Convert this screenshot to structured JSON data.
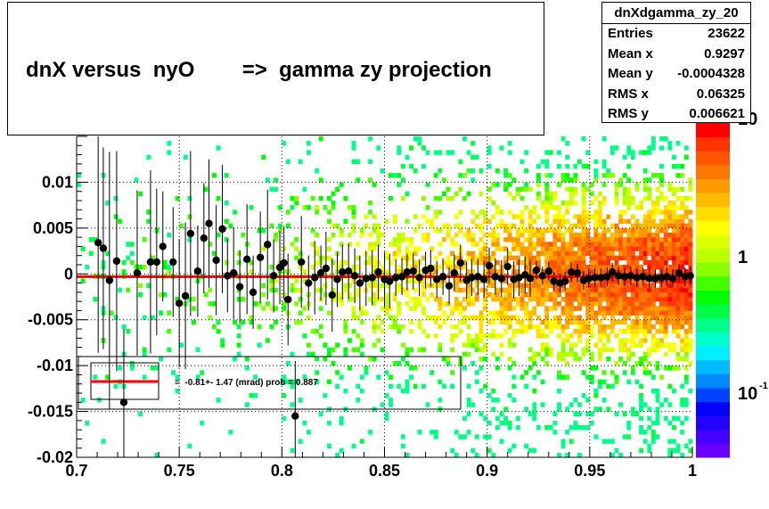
{
  "title": "dnX versus  nyO        =>  gamma zy projection",
  "stats": {
    "name": "dnXdgamma_zy_20",
    "rows": [
      {
        "label": "Entries",
        "value": "23622"
      },
      {
        "label": "Mean x",
        "value": "0.9297"
      },
      {
        "label": "Mean y",
        "value": "-0.0004328"
      },
      {
        "label": "RMS x",
        "value": "0.06325"
      },
      {
        "label": "RMS y",
        "value": "0.006621"
      }
    ]
  },
  "fit_label": "=  -0.81+- 1.47 (mrad) prob = 0.887",
  "colors": {
    "fit_line": "#ff0000",
    "points": "#000000"
  },
  "chart_data": {
    "type": "heatmap",
    "xlim": [
      0.7,
      1.0
    ],
    "ylim": [
      -0.02,
      0.015
    ],
    "x_tick_labels": [
      "0.7",
      "0.75",
      "0.8",
      "0.85",
      "0.9",
      "0.95",
      "1"
    ],
    "y_tick_labels": [
      "0.01",
      "0.005",
      "0",
      "-0.005",
      "-0.01",
      "-0.015",
      "-0.02"
    ],
    "x_ticks": [
      0.7,
      0.75,
      0.8,
      0.85,
      0.9,
      0.95,
      1.0
    ],
    "y_ticks": [
      0.01,
      0.005,
      0,
      -0.005,
      -0.01,
      -0.015,
      -0.02
    ],
    "z_scale": "log",
    "z_tick_labels": [
      "10",
      "1",
      "10"
    ],
    "z_tick_exponents": [
      "",
      "",
      "-1"
    ],
    "grid": true,
    "fit": {
      "slope_mrad": -0.81,
      "error_mrad": 1.47,
      "prob": 0.887,
      "y_value": -0.0003
    },
    "profile_points": [
      {
        "x": 0.7105,
        "y": 0.0034,
        "err": 0.012
      },
      {
        "x": 0.713,
        "y": 0.0028,
        "err": 0.011
      },
      {
        "x": 0.716,
        "y": -0.0007,
        "err": 0.014
      },
      {
        "x": 0.7195,
        "y": 0.0014,
        "err": 0.012
      },
      {
        "x": 0.723,
        "y": -0.014,
        "err": 0.008
      },
      {
        "x": 0.7295,
        "y": 0.0001,
        "err": 0.009
      },
      {
        "x": 0.736,
        "y": 0.0013,
        "err": 0.01
      },
      {
        "x": 0.739,
        "y": 0.0013,
        "err": 0.008
      },
      {
        "x": 0.742,
        "y": 0.003,
        "err": 0.006
      },
      {
        "x": 0.747,
        "y": 0.0013,
        "err": 0.006
      },
      {
        "x": 0.75,
        "y": -0.0032,
        "err": 0.007
      },
      {
        "x": 0.753,
        "y": -0.0024,
        "err": 0.008
      },
      {
        "x": 0.7555,
        "y": 0.0044,
        "err": 0.009
      },
      {
        "x": 0.759,
        "y": 0.0003,
        "err": 0.005
      },
      {
        "x": 0.762,
        "y": 0.0039,
        "err": 0.006
      },
      {
        "x": 0.7645,
        "y": 0.0055,
        "err": 0.007
      },
      {
        "x": 0.768,
        "y": 0.0015,
        "err": 0.006
      },
      {
        "x": 0.771,
        "y": 0.0049,
        "err": 0.007
      },
      {
        "x": 0.7735,
        "y": -0.0002,
        "err": 0.004
      },
      {
        "x": 0.7765,
        "y": 0.0001,
        "err": 0.005
      },
      {
        "x": 0.7795,
        "y": -0.0014,
        "err": 0.004
      },
      {
        "x": 0.783,
        "y": 0.0016,
        "err": 0.006
      },
      {
        "x": 0.786,
        "y": -0.002,
        "err": 0.004
      },
      {
        "x": 0.7895,
        "y": 0.0018,
        "err": 0.005
      },
      {
        "x": 0.793,
        "y": 0.0032,
        "err": 0.006
      },
      {
        "x": 0.796,
        "y": -0.0002,
        "err": 0.004
      },
      {
        "x": 0.799,
        "y": 0.0007,
        "err": 0.004
      },
      {
        "x": 0.801,
        "y": 0.0012,
        "err": 0.004
      },
      {
        "x": 0.803,
        "y": -0.0028,
        "err": 0.005
      },
      {
        "x": 0.8065,
        "y": -0.0155,
        "err": 0.006
      },
      {
        "x": 0.8095,
        "y": 0.0013,
        "err": 0.005
      },
      {
        "x": 0.813,
        "y": -0.001,
        "err": 0.003
      },
      {
        "x": 0.816,
        "y": -0.0004,
        "err": 0.004
      },
      {
        "x": 0.819,
        "y": 0.0001,
        "err": 0.003
      },
      {
        "x": 0.8215,
        "y": 0.0006,
        "err": 0.004
      },
      {
        "x": 0.8245,
        "y": -0.0023,
        "err": 0.004
      },
      {
        "x": 0.827,
        "y": -0.0006,
        "err": 0.003
      },
      {
        "x": 0.8295,
        "y": 0.0002,
        "err": 0.003
      },
      {
        "x": 0.8325,
        "y": 0.0003,
        "err": 0.003
      },
      {
        "x": 0.8355,
        "y": -0.0002,
        "err": 0.003
      },
      {
        "x": 0.838,
        "y": -0.001,
        "err": 0.003
      },
      {
        "x": 0.841,
        "y": -0.0005,
        "err": 0.003
      },
      {
        "x": 0.844,
        "y": -0.0004,
        "err": 0.003
      },
      {
        "x": 0.847,
        "y": 0.0002,
        "err": 0.003
      },
      {
        "x": 0.85,
        "y": -0.0006,
        "err": 0.003
      },
      {
        "x": 0.8525,
        "y": -0.0008,
        "err": 0.003
      },
      {
        "x": 0.8555,
        "y": -0.0004,
        "err": 0.002
      },
      {
        "x": 0.8585,
        "y": -0.0003,
        "err": 0.002
      },
      {
        "x": 0.861,
        "y": 0.0002,
        "err": 0.002
      },
      {
        "x": 0.864,
        "y": 0.0003,
        "err": 0.002
      },
      {
        "x": 0.867,
        "y": -0.0004,
        "err": 0.002
      },
      {
        "x": 0.87,
        "y": 0.0004,
        "err": 0.002
      },
      {
        "x": 0.8725,
        "y": 0.0006,
        "err": 0.002
      },
      {
        "x": 0.8755,
        "y": -0.0006,
        "err": 0.002
      },
      {
        "x": 0.8785,
        "y": -0.0003,
        "err": 0.002
      },
      {
        "x": 0.8815,
        "y": -0.0013,
        "err": 0.002
      },
      {
        "x": 0.884,
        "y": 0.0001,
        "err": 0.002
      },
      {
        "x": 0.887,
        "y": 0.0012,
        "err": 0.002
      },
      {
        "x": 0.89,
        "y": -0.0007,
        "err": 0.002
      },
      {
        "x": 0.8925,
        "y": -0.0004,
        "err": 0.002
      },
      {
        "x": 0.8955,
        "y": -0.0003,
        "err": 0.002
      },
      {
        "x": 0.8985,
        "y": -0.0006,
        "err": 0.002
      },
      {
        "x": 0.901,
        "y": 0.0009,
        "err": 0.002
      },
      {
        "x": 0.904,
        "y": -0.0003,
        "err": 0.002
      },
      {
        "x": 0.907,
        "y": -0.0005,
        "err": 0.002
      },
      {
        "x": 0.91,
        "y": 0.0008,
        "err": 0.002
      },
      {
        "x": 0.913,
        "y": -0.0006,
        "err": 0.002
      },
      {
        "x": 0.9155,
        "y": -0.0004,
        "err": 0.002
      },
      {
        "x": 0.9185,
        "y": -0.0001,
        "err": 0.002
      },
      {
        "x": 0.921,
        "y": -0.0005,
        "err": 0.002
      },
      {
        "x": 0.924,
        "y": 0.0004,
        "err": 0.001
      },
      {
        "x": 0.927,
        "y": -0.0002,
        "err": 0.001
      },
      {
        "x": 0.93,
        "y": 0.0003,
        "err": 0.001
      },
      {
        "x": 0.9325,
        "y": -0.0008,
        "err": 0.001
      },
      {
        "x": 0.9355,
        "y": -0.001,
        "err": 0.001
      },
      {
        "x": 0.938,
        "y": -0.0008,
        "err": 0.001
      },
      {
        "x": 0.941,
        "y": 0.0002,
        "err": 0.001
      },
      {
        "x": 0.944,
        "y": 0.0001,
        "err": 0.001
      },
      {
        "x": 0.947,
        "y": -0.0007,
        "err": 0.001
      },
      {
        "x": 0.9495,
        "y": -0.0005,
        "err": 0.001
      },
      {
        "x": 0.9525,
        "y": -0.0004,
        "err": 0.001
      },
      {
        "x": 0.9555,
        "y": -0.0004,
        "err": 0.001
      },
      {
        "x": 0.9585,
        "y": -0.0003,
        "err": 0.001
      },
      {
        "x": 0.961,
        "y": 0.0002,
        "err": 0.001
      },
      {
        "x": 0.964,
        "y": -0.0002,
        "err": 0.001
      },
      {
        "x": 0.967,
        "y": -0.0003,
        "err": 0.001
      },
      {
        "x": 0.97,
        "y": -0.0002,
        "err": 0.001
      },
      {
        "x": 0.973,
        "y": -0.0004,
        "err": 0.001
      },
      {
        "x": 0.976,
        "y": -0.0003,
        "err": 0.001
      },
      {
        "x": 0.979,
        "y": -0.0005,
        "err": 0.001
      },
      {
        "x": 0.982,
        "y": -0.0005,
        "err": 0.001
      },
      {
        "x": 0.985,
        "y": -0.0004,
        "err": 0.001
      },
      {
        "x": 0.9875,
        "y": -0.0003,
        "err": 0.001
      },
      {
        "x": 0.9905,
        "y": -0.0005,
        "err": 0.001
      },
      {
        "x": 0.9935,
        "y": 0.0001,
        "err": 0.001
      },
      {
        "x": 0.9965,
        "y": -0.0003,
        "err": 0.001
      },
      {
        "x": 0.999,
        "y": -0.0002,
        "err": 0.001
      }
    ]
  }
}
